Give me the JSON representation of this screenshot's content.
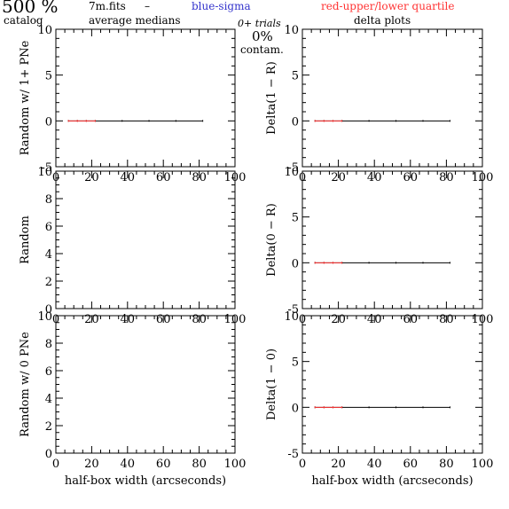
{
  "header": {
    "big_label": "500 %",
    "catalog": "catalog",
    "file": "7m.fits",
    "file_dash": "–",
    "averages": "average medians",
    "blue_label": "blue-sigma",
    "red_label": "red-upper/lower quartile",
    "trials": "0+ trials",
    "contam_pct": "0%",
    "contam": "contam.",
    "delta_plots": "delta plots",
    "blue_color": "#3333cc",
    "red_color": "#ff3333"
  },
  "chart_data": [
    {
      "type": "line",
      "panel": "left-top",
      "xlabel": "",
      "ylabel": "Random w/ 1+ PNe",
      "xlim": [
        0,
        100
      ],
      "ylim": [
        -5,
        10
      ],
      "yticks": [
        -5,
        0,
        5,
        10
      ],
      "xticks": [
        0,
        20,
        40,
        60,
        80,
        100
      ],
      "x": [
        7,
        12,
        17,
        22,
        37,
        52,
        67,
        82
      ],
      "series": [
        {
          "values": [
            0,
            0,
            0,
            0,
            0,
            0,
            0,
            0
          ],
          "color": "#000000"
        },
        {
          "values": [
            0,
            0,
            0,
            0
          ],
          "x": [
            7,
            12,
            17,
            22
          ],
          "color": "#ff3333"
        }
      ]
    },
    {
      "type": "line",
      "panel": "right-top",
      "xlabel": "",
      "ylabel": "Delta(1 − R)",
      "xlim": [
        0,
        100
      ],
      "ylim": [
        -5,
        10
      ],
      "yticks": [
        -5,
        0,
        5,
        10
      ],
      "xticks": [
        0,
        20,
        40,
        60,
        80,
        100
      ],
      "x": [
        7,
        12,
        17,
        22,
        37,
        52,
        67,
        82
      ],
      "series": [
        {
          "values": [
            0,
            0,
            0,
            0,
            0,
            0,
            0,
            0
          ],
          "color": "#000000"
        },
        {
          "values": [
            0,
            0,
            0,
            0
          ],
          "x": [
            7,
            12,
            17,
            22
          ],
          "color": "#ff3333"
        }
      ]
    },
    {
      "type": "line",
      "panel": "left-middle",
      "xlabel": "",
      "ylabel": "Random",
      "xlim": [
        0,
        100
      ],
      "ylim": [
        0,
        10
      ],
      "yticks": [
        0,
        2,
        4,
        6,
        8,
        10
      ],
      "xticks": [
        0,
        20,
        40,
        60,
        80,
        100
      ],
      "series": []
    },
    {
      "type": "line",
      "panel": "right-middle",
      "xlabel": "",
      "ylabel": "Delta(0 − R)",
      "xlim": [
        0,
        100
      ],
      "ylim": [
        -5,
        10
      ],
      "yticks": [
        -5,
        0,
        5,
        10
      ],
      "xticks": [
        0,
        20,
        40,
        60,
        80,
        100
      ],
      "x": [
        7,
        12,
        17,
        22,
        37,
        52,
        67,
        82
      ],
      "series": [
        {
          "values": [
            0,
            0,
            0,
            0,
            0,
            0,
            0,
            0
          ],
          "color": "#000000"
        },
        {
          "values": [
            0,
            0,
            0,
            0
          ],
          "x": [
            7,
            12,
            17,
            22
          ],
          "color": "#ff3333"
        }
      ]
    },
    {
      "type": "line",
      "panel": "left-bottom",
      "xlabel": "half-box width (arcseconds)",
      "ylabel": "Random w/ 0 PNe",
      "xlim": [
        0,
        100
      ],
      "ylim": [
        0,
        10
      ],
      "yticks": [
        0,
        2,
        4,
        6,
        8,
        10
      ],
      "xticks": [
        0,
        20,
        40,
        60,
        80,
        100
      ],
      "series": []
    },
    {
      "type": "line",
      "panel": "right-bottom",
      "xlabel": "half-box width (arcseconds)",
      "ylabel": "Delta(1 − 0)",
      "xlim": [
        0,
        100
      ],
      "ylim": [
        -5,
        10
      ],
      "yticks": [
        -5,
        0,
        5,
        10
      ],
      "xticks": [
        0,
        20,
        40,
        60,
        80,
        100
      ],
      "x": [
        7,
        12,
        17,
        22,
        37,
        52,
        67,
        82
      ],
      "series": [
        {
          "values": [
            0,
            0,
            0,
            0,
            0,
            0,
            0,
            0
          ],
          "color": "#000000"
        },
        {
          "values": [
            0,
            0,
            0,
            0
          ],
          "x": [
            7,
            12,
            17,
            22
          ],
          "color": "#ff3333"
        }
      ]
    }
  ]
}
